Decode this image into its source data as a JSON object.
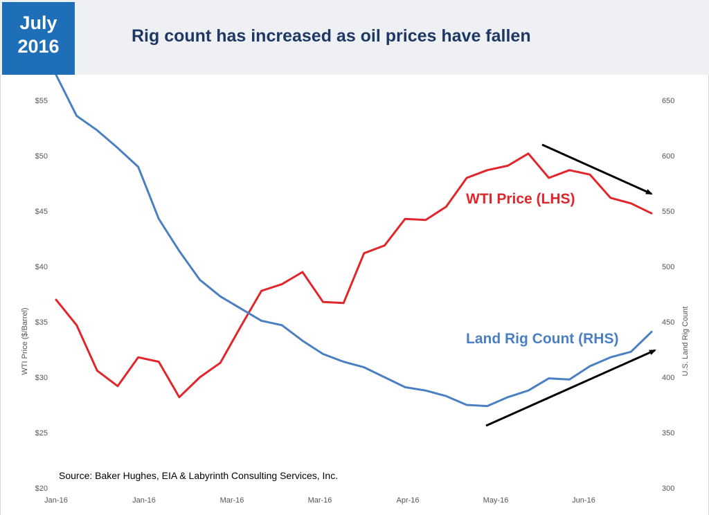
{
  "header": {
    "badge_line1": "July",
    "badge_line2": "2016",
    "title": "Rig count has increased as oil prices have fallen"
  },
  "colors": {
    "wti": "#e0262b",
    "rig": "#4a7fc1",
    "badge": "#1f6fb8",
    "title": "#1d3864"
  },
  "chart_data": {
    "type": "line",
    "x_tick_labels": [
      "Jan-16",
      "Jan-16",
      "Mar-16",
      "Mar-16",
      "Apr-16",
      "May-16",
      "Jun-16"
    ],
    "y_left": {
      "label": "WTI Price ($/Barrel)",
      "range": [
        20,
        55
      ],
      "ticks": [
        "$20",
        "$25",
        "$30",
        "$35",
        "$40",
        "$45",
        "$50",
        "$55"
      ]
    },
    "y_right": {
      "label": "U.S. Land Rig Count",
      "range": [
        300,
        650
      ],
      "ticks": [
        "300",
        "350",
        "400",
        "450",
        "500",
        "550",
        "600",
        "650"
      ]
    },
    "series": [
      {
        "name": "WTI Price (LHS)",
        "axis": "left",
        "values": [
          37.0,
          34.7,
          30.6,
          29.2,
          31.8,
          31.4,
          28.2,
          30.0,
          31.3,
          34.6,
          37.8,
          38.4,
          39.5,
          36.8,
          36.7,
          41.2,
          41.9,
          44.3,
          44.2,
          45.4,
          48.0,
          48.7,
          49.1,
          50.2,
          48.0,
          48.7,
          48.3,
          46.2,
          45.7,
          44.8
        ]
      },
      {
        "name": "Land Rig Count (RHS)",
        "axis": "right",
        "values": [
          673,
          636,
          623,
          607,
          590,
          543,
          514,
          488,
          473,
          462,
          451,
          447,
          433,
          421,
          414,
          409,
          400,
          391,
          388,
          383,
          375,
          374,
          382,
          388,
          399,
          398,
          410,
          418,
          423,
          441
        ]
      }
    ],
    "annotations": {
      "wti_label": "WTI Price (LHS)",
      "rig_label": "Land Rig Count (RHS)",
      "source": "Source: Baker Hughes, EIA & Labyrinth Consulting Services, Inc."
    },
    "grid": false,
    "legend": "inline labels"
  }
}
